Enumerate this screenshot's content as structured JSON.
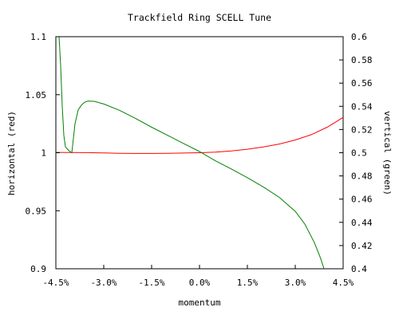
{
  "chart_data": {
    "type": "line",
    "title": "Trackfield Ring SCELL Tune",
    "xlabel": "momentum",
    "ylabel_left": "horizontal (red)",
    "ylabel_right": "vertical (green)",
    "xlim": [
      -4.5,
      4.5
    ],
    "ylim_left": [
      0.9,
      1.1
    ],
    "ylim_right": [
      0.4,
      0.6
    ],
    "x_tick_values": [
      -4.5,
      -3.0,
      -1.5,
      0.0,
      1.5,
      3.0,
      4.5
    ],
    "x_ticks": [
      "-4.5%",
      "-3.0%",
      "-1.5%",
      "0.0%",
      "1.5%",
      "3.0%",
      "4.5%"
    ],
    "y_left_tick_values": [
      0.9,
      0.95,
      1.0,
      1.05,
      1.1
    ],
    "y_left_ticks": [
      "0.9",
      "0.95",
      "1",
      "1.05",
      "1.1"
    ],
    "y_right_tick_values": [
      0.4,
      0.42,
      0.44,
      0.46,
      0.48,
      0.5,
      0.52,
      0.54,
      0.56,
      0.58,
      0.6
    ],
    "y_right_ticks": [
      "0.4",
      "0.42",
      "0.44",
      "0.46",
      "0.48",
      "0.5",
      "0.52",
      "0.54",
      "0.56",
      "0.58",
      "0.6"
    ],
    "grid": false,
    "legend": "none",
    "series": [
      {
        "axis": "left",
        "color": "#ff0000",
        "x": [
          -4.5,
          -4.0,
          -3.5,
          -3.0,
          -2.5,
          -2.0,
          -1.5,
          -1.0,
          -0.5,
          0.0,
          0.5,
          1.0,
          1.5,
          2.0,
          2.5,
          3.0,
          3.5,
          4.0,
          4.3,
          4.5
        ],
        "y": [
          1.0003,
          1.0002,
          1.0001,
          0.9998,
          0.9995,
          0.9994,
          0.9994,
          0.9995,
          0.9997,
          1.0,
          1.0005,
          1.0015,
          1.003,
          1.005,
          1.0075,
          1.011,
          1.0155,
          1.022,
          1.027,
          1.0305
        ]
      },
      {
        "axis": "right",
        "color": "#008000",
        "x": [
          -4.4,
          -4.35,
          -4.3,
          -4.25,
          -4.2,
          -4.1,
          -4.0,
          -3.9,
          -3.8,
          -3.7,
          -3.6,
          -3.5,
          -3.3,
          -3.0,
          -2.5,
          -2.0,
          -1.5,
          -1.0,
          -0.5,
          0.0,
          0.5,
          1.0,
          1.5,
          2.0,
          2.5,
          3.0,
          3.3,
          3.6,
          3.8,
          3.9
        ],
        "y": [
          0.6,
          0.575,
          0.54,
          0.515,
          0.505,
          0.502,
          0.5,
          0.525,
          0.537,
          0.541,
          0.5435,
          0.5445,
          0.5443,
          0.542,
          0.5365,
          0.5295,
          0.522,
          0.515,
          0.508,
          0.501,
          0.493,
          0.486,
          0.4785,
          0.4705,
          0.4615,
          0.4495,
          0.4385,
          0.4225,
          0.4085,
          0.4
        ]
      }
    ]
  }
}
